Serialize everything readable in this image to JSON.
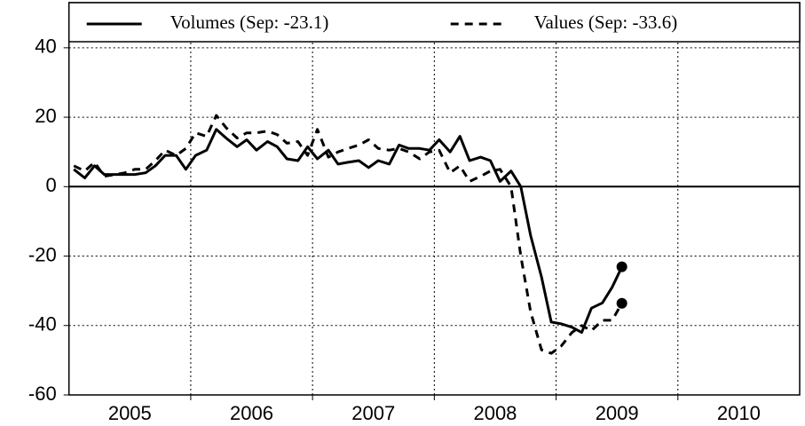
{
  "chart_data": {
    "type": "line",
    "x": [
      2005.04,
      2005.13,
      2005.21,
      2005.29,
      2005.38,
      2005.46,
      2005.54,
      2005.63,
      2005.71,
      2005.79,
      2005.88,
      2005.96,
      2006.04,
      2006.13,
      2006.21,
      2006.29,
      2006.38,
      2006.46,
      2006.54,
      2006.63,
      2006.71,
      2006.79,
      2006.88,
      2006.96,
      2007.04,
      2007.13,
      2007.21,
      2007.29,
      2007.38,
      2007.46,
      2007.54,
      2007.63,
      2007.71,
      2007.79,
      2007.88,
      2007.96,
      2008.04,
      2008.13,
      2008.21,
      2008.29,
      2008.38,
      2008.46,
      2008.54,
      2008.63,
      2008.71,
      2008.79,
      2008.88,
      2008.96,
      2009.04,
      2009.13,
      2009.21,
      2009.29,
      2009.38,
      2009.46,
      2009.54
    ],
    "series": [
      {
        "name": "Volumes (Sep: -23.1)",
        "color": "#000000",
        "dash": "solid",
        "values": [
          5,
          2.5,
          6,
          3.5,
          3.5,
          3.5,
          3.5,
          4,
          6,
          9,
          9,
          5,
          9,
          10.5,
          16.5,
          14,
          11.5,
          13.5,
          10.5,
          13,
          11.5,
          8,
          7.5,
          11.5,
          8,
          10.5,
          6.5,
          7,
          7.5,
          5.5,
          7.5,
          6.5,
          12,
          11,
          11,
          10.5,
          13.5,
          10,
          14.5,
          7.5,
          8.5,
          7.5,
          1.5,
          4.5,
          0,
          -14,
          -26,
          -39,
          -39.5,
          -40.5,
          -42,
          -35,
          -33.5,
          -29,
          -23.1
        ]
      },
      {
        "name": "Values (Sep: -33.6)",
        "color": "#000000",
        "dash": "dashed",
        "values": [
          6,
          4.5,
          7,
          3,
          3.5,
          4,
          5,
          5,
          7.5,
          10.5,
          9,
          11,
          15.5,
          14.5,
          20.5,
          17,
          14,
          15.5,
          15.5,
          16,
          15,
          12.5,
          13,
          9,
          16.5,
          8.5,
          10,
          11,
          12,
          13.5,
          11,
          10.5,
          11,
          10,
          8,
          10,
          10.5,
          4,
          6,
          1.5,
          3,
          4.5,
          5,
          0,
          -20,
          -36,
          -47,
          -48,
          -46,
          -42,
          -40,
          -41.5,
          -38.5,
          -38.5,
          -33.6
        ]
      }
    ],
    "xlim": [
      2005,
      2011
    ],
    "xticks": [
      {
        "value": 2005.5,
        "label": "2005"
      },
      {
        "value": 2006.5,
        "label": "2006"
      },
      {
        "value": 2007.5,
        "label": "2007"
      },
      {
        "value": 2008.5,
        "label": "2008"
      },
      {
        "value": 2009.5,
        "label": "2009"
      },
      {
        "value": 2010.5,
        "label": "2010"
      }
    ],
    "x_grid_lines": [
      2006,
      2007,
      2008,
      2009,
      2010
    ],
    "ylim": [
      -60,
      53
    ],
    "yticks": [
      40,
      20,
      0,
      -20,
      -40,
      -60
    ],
    "grid": true,
    "reference_line": 0,
    "end_markers": true,
    "legend": "top"
  }
}
